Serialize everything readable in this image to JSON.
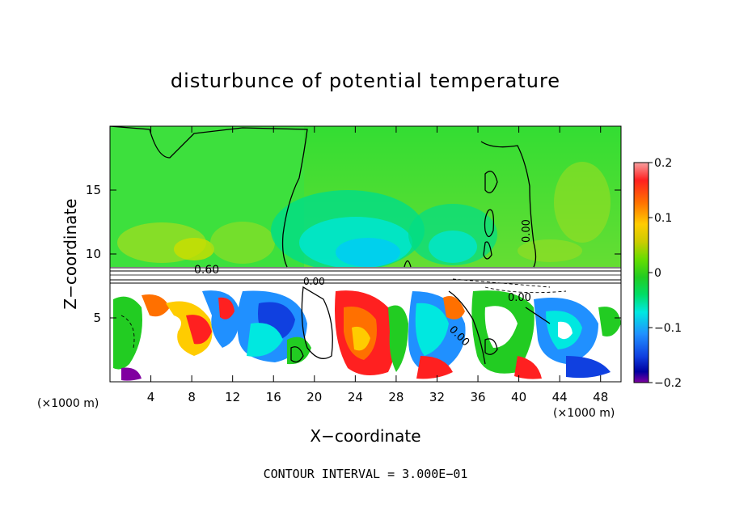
{
  "chart_data": {
    "type": "heatmap",
    "title": "disturbunce of potential temperature",
    "xlabel": "X−coordinate",
    "ylabel": "Z−coordinate",
    "x_units": "(×1000 m)",
    "y_units": "(×1000 m)",
    "xlim": [
      0,
      50
    ],
    "ylim": [
      0,
      20
    ],
    "x_ticks": [
      4,
      8,
      12,
      16,
      20,
      24,
      28,
      32,
      36,
      40,
      44,
      48
    ],
    "y_ticks": [
      5,
      10,
      15
    ],
    "colorbar": {
      "min": -0.2,
      "max": 0.2,
      "ticks": [
        "0.2",
        "0.1",
        "0",
        "−0.1",
        "−0.2"
      ],
      "colors": [
        "#f7a0a0",
        "#ff2020",
        "#ff7000",
        "#ffcc00",
        "#cccc00",
        "#66dd00",
        "#22cc22",
        "#00dd66",
        "#00e8e0",
        "#2090ff",
        "#1040e0",
        "#0000a0",
        "#8000a0"
      ]
    },
    "contour_labels": [
      "0.60",
      "0.00",
      "0.00",
      "0.00",
      "0.00"
    ],
    "contour_interval_text": "CONTOUR INTERVAL = 3.000E−01"
  }
}
